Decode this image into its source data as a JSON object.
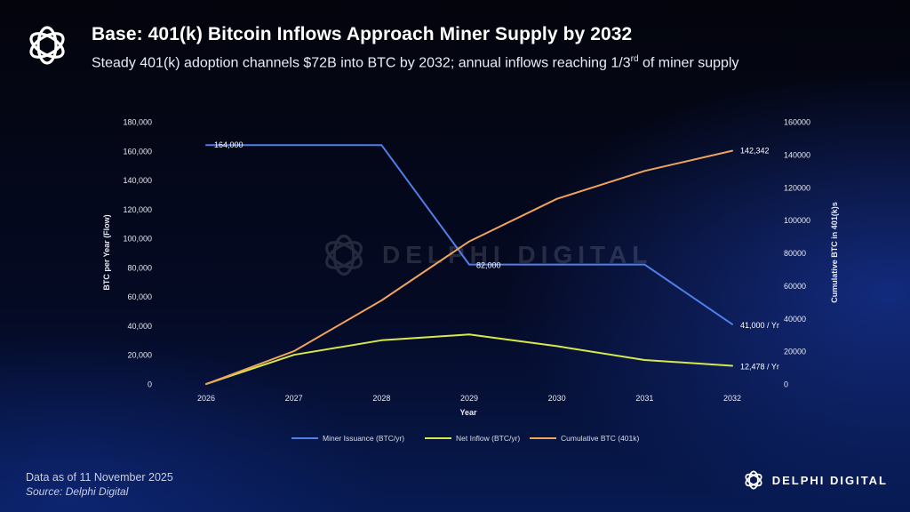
{
  "header": {
    "title": "Base: 401(k) Bitcoin Inflows Approach Miner Supply by 2032",
    "subtitle_main": "Steady 401(k) adoption channels $72B into BTC by 2032; annual inflows reaching 1/3",
    "subtitle_sup": "rd",
    "subtitle_end": " of miner supply"
  },
  "footer": {
    "data_date": "Data as of 11 November 2025",
    "source": "Source: Delphi Digital"
  },
  "brand": {
    "name": "DELPHI DIGITAL",
    "logo_icon": "delphi-logo-icon"
  },
  "watermark": {
    "text": "DELPHI DIGITAL"
  },
  "colors": {
    "miner": "#4f7fe8",
    "net": "#d6e84a",
    "cumulative": "#f0a35a",
    "axis_text": "#e6e8ef"
  },
  "chart_data": {
    "type": "line",
    "x": [
      "2026",
      "2027",
      "2028",
      "2029",
      "2030",
      "2031",
      "2032"
    ],
    "xlabel": "Year",
    "ylabel": "BTC per Year (Flow)",
    "y2label": "Cumulative BTC in 401(k)s",
    "ylim": [
      0,
      180000
    ],
    "y2lim": [
      0,
      160000
    ],
    "y_ticks": [
      "0",
      "20,000",
      "40,000",
      "60,000",
      "80,000",
      "100,000",
      "120,000",
      "140,000",
      "160,000",
      "180,000"
    ],
    "y2_ticks": [
      "0",
      "20000",
      "40000",
      "60000",
      "80000",
      "100000",
      "120000",
      "140000",
      "160000"
    ],
    "grid": false,
    "legend": "bottom",
    "series": [
      {
        "name": "Miner Issuance (BTC/yr)",
        "axis": "left",
        "values": [
          164000,
          164000,
          164000,
          82000,
          82000,
          82000,
          41000
        ],
        "color": "#4f7fe8"
      },
      {
        "name": "Net Inflow (BTC/yr)",
        "axis": "left",
        "values": [
          0,
          20000,
          30000,
          34000,
          26000,
          16500,
          12478
        ],
        "color": "#d6e84a"
      },
      {
        "name": "Cumulative BTC (401k)",
        "axis": "right",
        "values": [
          0,
          20000,
          51000,
          87000,
          113000,
          130000,
          142342
        ],
        "color": "#f0a35a"
      }
    ],
    "annotations": [
      {
        "text": "164,000",
        "series": 0,
        "index": 0
      },
      {
        "text": "82,000",
        "series": 0,
        "index": 3
      },
      {
        "text": "41,000 / Yr",
        "series": 0,
        "index": 6
      },
      {
        "text": "12,478 / Yr",
        "series": 1,
        "index": 6
      },
      {
        "text": "142,342",
        "series": 2,
        "index": 6
      }
    ]
  }
}
